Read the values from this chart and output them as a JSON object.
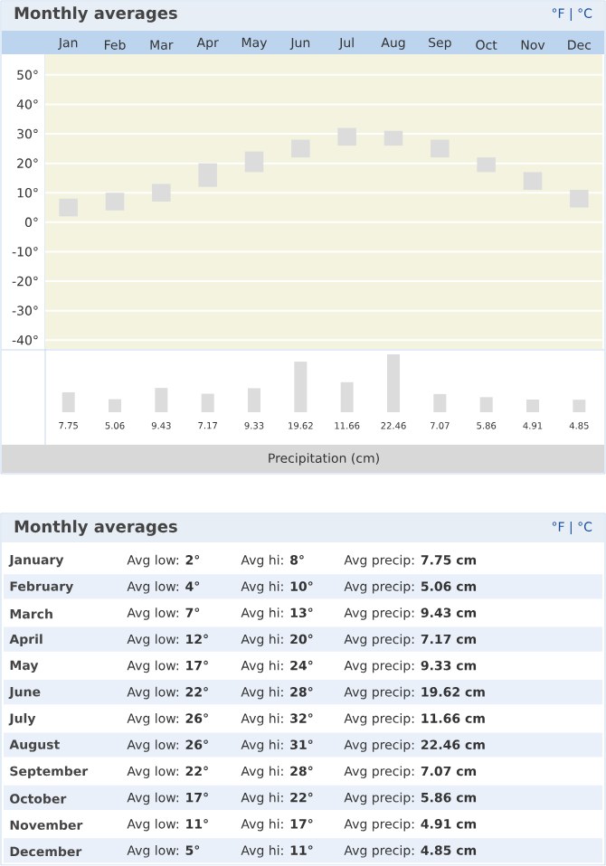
{
  "chart_data": [
    {
      "type": "bar",
      "title": "Monthly averages",
      "annotations": [
        "°F | °C"
      ],
      "categories": [
        "Jan",
        "Feb",
        "Mar",
        "Apr",
        "May",
        "Jun",
        "Jul",
        "Aug",
        "Sep",
        "Oct",
        "Nov",
        "Dec"
      ],
      "base": [
        2,
        4,
        7,
        12,
        17,
        22,
        26,
        26,
        22,
        17,
        11,
        5
      ],
      "values": [
        6,
        6,
        6,
        8,
        7,
        6,
        6,
        5,
        6,
        5,
        6,
        6
      ],
      "color": "#dcdcdc",
      "ylim": [
        -43,
        57
      ],
      "yticks": [
        {
          "value": 50,
          "label": "50°"
        },
        {
          "value": 40,
          "label": "40°"
        },
        {
          "value": 30,
          "label": "30°"
        },
        {
          "value": 20,
          "label": "20°"
        },
        {
          "value": 10,
          "label": "10°"
        },
        {
          "value": 0,
          "label": "0°"
        },
        {
          "value": -10,
          "label": "-10°"
        },
        {
          "value": -20,
          "label": "-20°"
        },
        {
          "value": -30,
          "label": "-30°"
        },
        {
          "value": -40,
          "label": "-40°"
        }
      ],
      "grid": "y"
    },
    {
      "type": "bar",
      "xlabel": "Precipitation (cm)",
      "categories": [
        null,
        null,
        null,
        null,
        null,
        null,
        null,
        null,
        null,
        null,
        null,
        null
      ],
      "values": [
        7.75,
        5.06,
        9.43,
        7.17,
        9.33,
        19.62,
        11.66,
        22.46,
        7.07,
        5.86,
        4.91,
        4.85
      ],
      "color": "#dcdcdc",
      "data_labels": true,
      "tick_labels": false
    },
    {
      "type": "other",
      "title": "Monthly averages",
      "annotations": [
        "°F | °C",
        "January",
        "Avg low: **2°**",
        "Avg hi: **8°**",
        "Avg precip: **7.75 cm**",
        "February",
        "Avg low: **4°**",
        "Avg hi: **10°**",
        "Avg precip: **5.06 cm**",
        "March",
        "Avg low: **7°**",
        "Avg hi: **13°**",
        "Avg precip: **9.43 cm**",
        "April",
        "Avg low: **12°**",
        "Avg hi: **20°**",
        "Avg precip: **7.17 cm**",
        "May",
        "Avg low: **17°**",
        "Avg hi: **24°**",
        "Avg precip: **9.33 cm**",
        "June",
        "Avg low: **22°**",
        "Avg hi: **28°**",
        "Avg precip: **19.62 cm**",
        "July",
        "Avg low: **26°**",
        "Avg hi: **32°**",
        "Avg precip: **11.66 cm**",
        "August",
        "Avg low: **26°**",
        "Avg hi: **31°**",
        "Avg precip: **22.46 cm**",
        "September",
        "Avg low: **22°**",
        "Avg hi: **28°**",
        "Avg precip: **7.07 cm**",
        "October",
        "Avg low: **17°**",
        "Avg hi: **22°**",
        "Avg precip: **5.86 cm**",
        "November",
        "Avg low: **11°**",
        "Avg hi: **17°**",
        "Avg precip: **4.91 cm**",
        "December",
        "Avg low: **5°**",
        "Avg hi: **11°**",
        "Avg precip: **4.85 cm**"
      ]
    }
  ]
}
